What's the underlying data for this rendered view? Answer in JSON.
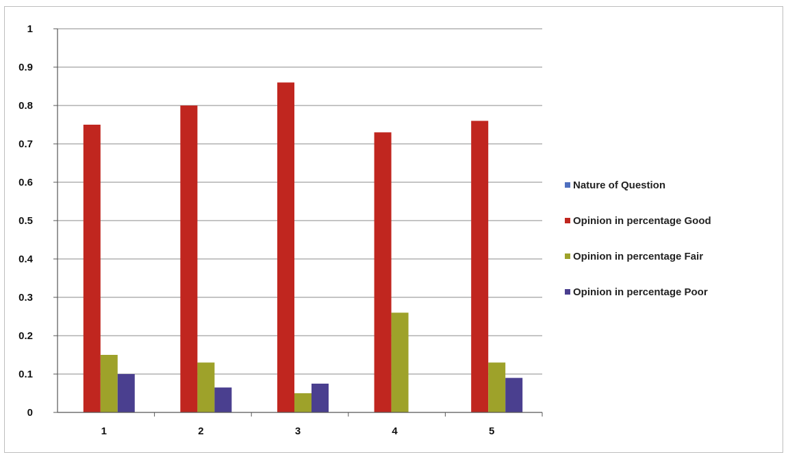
{
  "chart_data": {
    "type": "bar",
    "title": "",
    "xlabel": "",
    "ylabel": "",
    "categories": [
      "1",
      "2",
      "3",
      "4",
      "5"
    ],
    "ylim": [
      0,
      1
    ],
    "yticks": [
      "0",
      "0.1",
      "0.2",
      "0.3",
      "0.4",
      "0.5",
      "0.6",
      "0.7",
      "0.8",
      "0.9",
      "1"
    ],
    "grid": "horizontal",
    "legend_position": "right",
    "series": [
      {
        "name": "Nature of Question",
        "color": "#4f6fbf",
        "values": [
          0,
          0,
          0,
          0,
          0
        ]
      },
      {
        "name": "Opinion in percentage Good",
        "color": "#c0261f",
        "values": [
          0.75,
          0.8,
          0.86,
          0.73,
          0.76
        ]
      },
      {
        "name": "Opinion in percentage Fair",
        "color": "#9ea22a",
        "values": [
          0.15,
          0.13,
          0.05,
          0.26,
          0.13
        ]
      },
      {
        "name": "Opinion in percentage Poor",
        "color": "#4a3f8f",
        "values": [
          0.1,
          0.065,
          0.075,
          0,
          0.09
        ]
      }
    ]
  }
}
